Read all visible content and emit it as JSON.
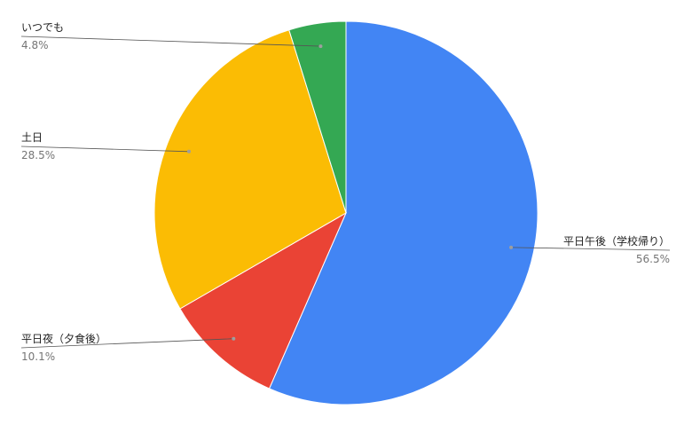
{
  "chart_data": {
    "type": "pie",
    "title": "",
    "slices": [
      {
        "label": "平日午後（学校帰り）",
        "value": 56.5,
        "percent_label": "56.5%",
        "color": "#4285F4"
      },
      {
        "label": "平日夜（夕食後）",
        "value": 10.1,
        "percent_label": "10.1%",
        "color": "#EA4335"
      },
      {
        "label": "土日",
        "value": 28.5,
        "percent_label": "28.5%",
        "color": "#FBBC04"
      },
      {
        "label": "いつでも",
        "value": 4.8,
        "percent_label": "4.8%",
        "color": "#34A853"
      }
    ],
    "start_angle_deg": 0,
    "direction": "clockwise",
    "legend": "none",
    "label_style": "outside-with-leader-lines"
  }
}
